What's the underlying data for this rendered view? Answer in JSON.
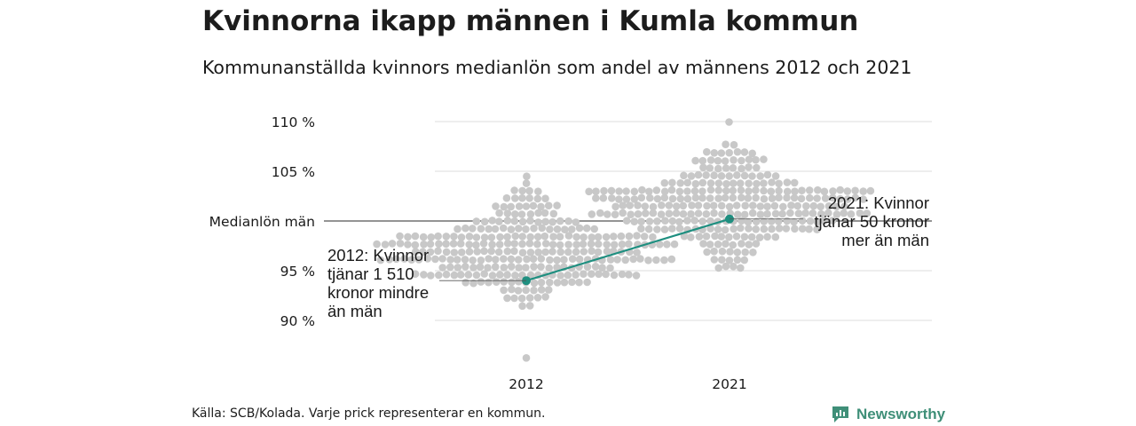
{
  "title": "Kvinnorna ikapp männen i Kumla kommun",
  "subtitle": "Kommunanställda kvinnors medianlön som andel av männens 2012 och 2021",
  "source": "Källa: SCB/Kolada. Varje prick representerar en kommun.",
  "brand": {
    "name": "Newsworthy",
    "icon": "newsworthy-logo-icon"
  },
  "colors": {
    "dots": "#c8c8c8",
    "highlight": "#1f8f80",
    "grid": "#dddddd",
    "reference": "#555555"
  },
  "chart_data": {
    "type": "scatter",
    "subtype": "beeswarm",
    "categories": [
      "2012",
      "2021"
    ],
    "y_ticks": [
      {
        "value": 90,
        "label": "90 %"
      },
      {
        "value": 95,
        "label": "95 %"
      },
      {
        "value": 100,
        "label": "Medianlön män"
      },
      {
        "value": 105,
        "label": "105 %"
      },
      {
        "value": 110,
        "label": "110 %"
      }
    ],
    "ylim": [
      86,
      112
    ],
    "grid": true,
    "reference_line": {
      "value": 100,
      "label": "Medianlön män"
    },
    "highlight": {
      "name": "Kumla",
      "values": [
        {
          "x": "2012",
          "y": 94.0
        },
        {
          "x": "2021",
          "y": 100.2
        }
      ]
    },
    "annotations": [
      {
        "x": "2012",
        "y": 94.0,
        "lines": [
          "2012: Kvinnor",
          "tjänar 1 510",
          "kronor mindre",
          "än män"
        ],
        "side": "left"
      },
      {
        "x": "2021",
        "y": 100.2,
        "lines": [
          "2021: Kvinnor",
          "tjänar 50 kronor",
          "mer än män"
        ],
        "side": "right"
      }
    ],
    "distribution": {
      "2012": {
        "median": 97.0,
        "spread": 2.7,
        "min": 89.0,
        "max": 105.0,
        "count": 290,
        "outliers": [
          86.4
        ]
      },
      "2021": {
        "median": 101.5,
        "spread": 2.7,
        "min": 93.0,
        "max": 111.5,
        "count": 290,
        "outliers": []
      }
    }
  }
}
